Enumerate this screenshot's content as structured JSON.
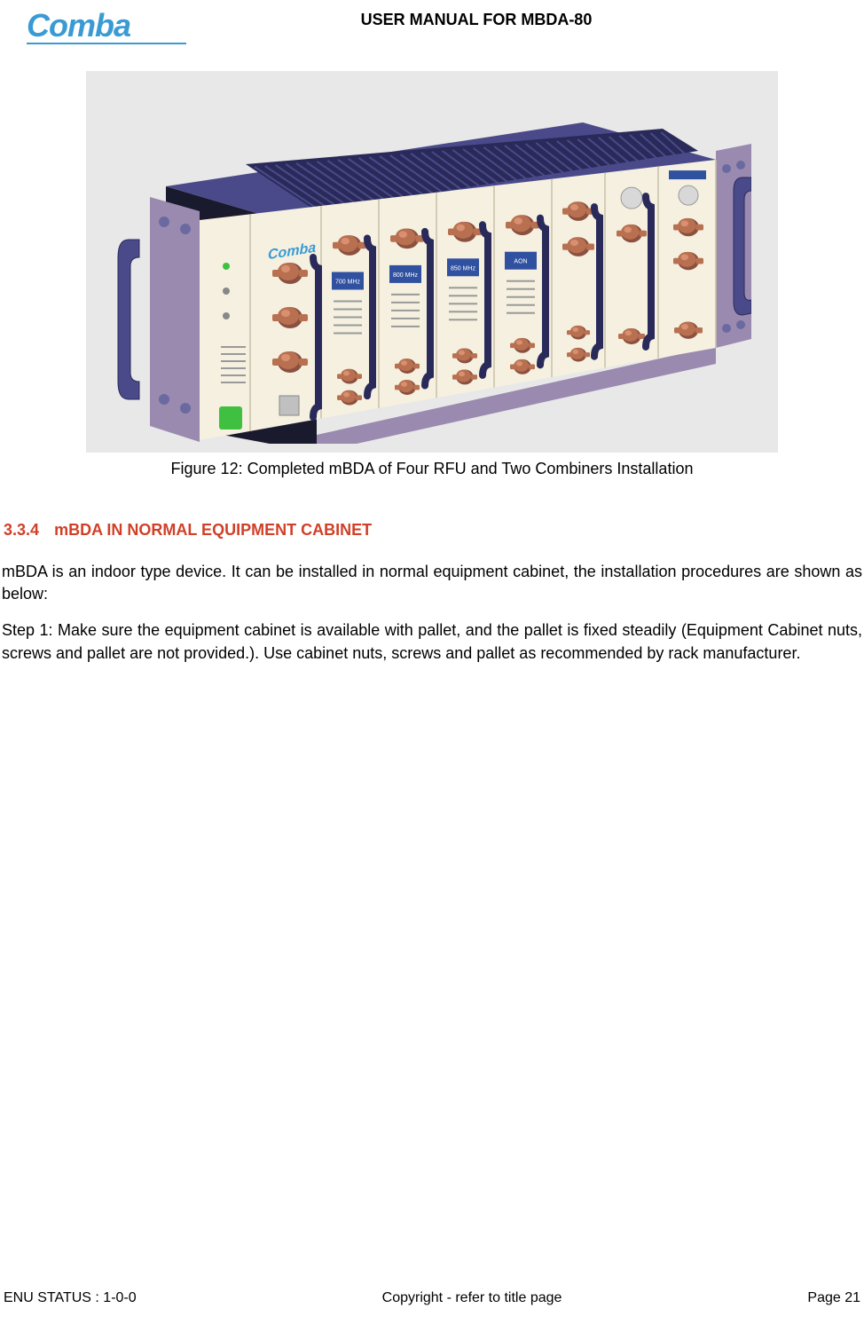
{
  "header": {
    "logo_text": "Comba",
    "logo_color": "#3a9bd4",
    "logo_underline_color": "#3a9bd4",
    "title": "USER MANUAL FOR MBDA-80"
  },
  "figure": {
    "caption": "Figure 12: Completed mBDA of Four RFU and Two Combiners Installation",
    "bg_color": "#e8e8e8",
    "device": {
      "chassis_top_color": "#4a4a8a",
      "chassis_side_color": "#1a1a2e",
      "chassis_floor_color": "#9a8ab0",
      "front_panel_color": "#f5f0e0",
      "handle_color": "#4a4a8a",
      "handle_outline_color": "#2a2a5a",
      "connector_color": "#b87050",
      "connector_highlight": "#d89070",
      "connector_shadow": "#8a5040",
      "front_label_text": "Comba",
      "front_label_color": "#3a9bd4",
      "module_label_bg": "#3050a0",
      "module_label_text_color": "#ffffff",
      "module_labels": [
        "700 MHz",
        "800 MHz",
        "850 MHz",
        "AON"
      ],
      "led_green": "#40c040",
      "grille_bar_color": "#2a2a5a"
    }
  },
  "section": {
    "number": "3.3.4",
    "title": "mBDA IN NORMAL EQUIPMENT CABINET",
    "heading_color": "#d04028"
  },
  "paragraphs": [
    "mBDA is an indoor type device. It can be installed in normal equipment cabinet, the installation procedures are shown as below:",
    "Step 1: Make sure the equipment cabinet is available with pallet, and the pallet is fixed steadily (Equipment Cabinet nuts, screws and pallet are not provided.). Use cabinet nuts, screws and pallet as recommended by rack manufacturer."
  ],
  "footer": {
    "left": "ENU STATUS : 1-0-0",
    "center": "Copyright - refer to title page",
    "right": "Page 21"
  }
}
